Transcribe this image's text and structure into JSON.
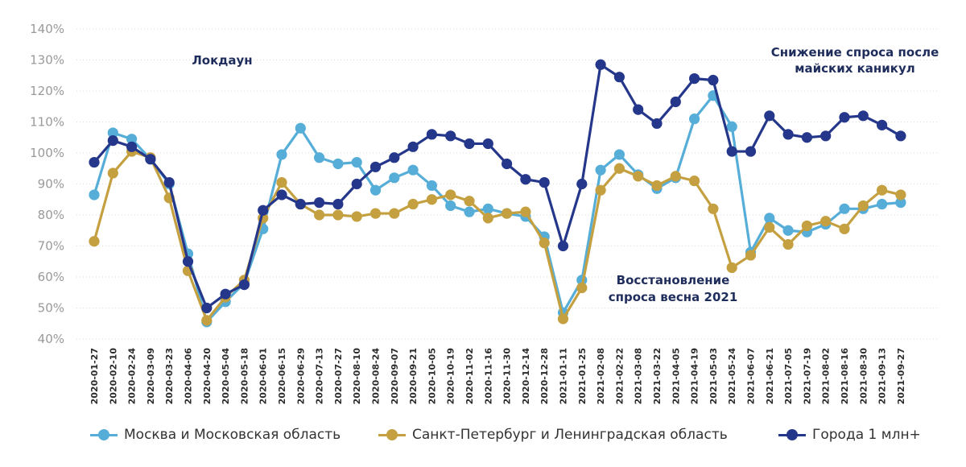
{
  "chart_data": {
    "type": "line",
    "title": "",
    "xlabel": "",
    "ylabel": "",
    "ylim": [
      40,
      140
    ],
    "y_ticks": [
      "40%",
      "50%",
      "60%",
      "70%",
      "80%",
      "90%",
      "100%",
      "110%",
      "120%",
      "130%",
      "140%"
    ],
    "grid": true,
    "legend_position": "bottom",
    "categories": [
      "2020-01-27",
      "2020-02-10",
      "2020-02-24",
      "2020-03-09",
      "2020-03-23",
      "2020-04-06",
      "2020-04-20",
      "2020-05-04",
      "2020-05-18",
      "2020-06-01",
      "2020-06-15",
      "2020-06-29",
      "2020-07-13",
      "2020-07-27",
      "2020-08-10",
      "2020-08-24",
      "2020-09-07",
      "2020-09-21",
      "2020-10-05",
      "2020-10-19",
      "2020-11-02",
      "2020-11-16",
      "2020-11-30",
      "2020-12-14",
      "2020-12-28",
      "2021-01-11",
      "2021-01-25",
      "2021-02-08",
      "2021-02-22",
      "2021-03-08",
      "2021-03-22",
      "2021-04-05",
      "2021-04-19",
      "2021-05-03",
      "2021-05-24",
      "2021-06-07",
      "2021-06-21",
      "2021-07-05",
      "2021-07-19",
      "2021-08-02",
      "2021-08-16",
      "2021-08-30",
      "2021-09-13",
      "2021-09-27"
    ],
    "series": [
      {
        "name": "Москва и Московская область",
        "color": "#56aed8",
        "values": [
          86.5,
          106.5,
          104.5,
          98,
          90,
          67.5,
          45.5,
          52,
          58,
          75.5,
          99.5,
          108,
          98.5,
          96.5,
          97,
          88,
          92,
          94.5,
          89.5,
          83,
          81,
          82,
          80.5,
          79.5,
          73,
          48.5,
          59,
          94.5,
          99.5,
          93,
          88.5,
          92,
          111,
          118.5,
          108.5,
          68,
          79,
          75,
          74.5,
          77,
          82,
          82,
          83.5,
          84
        ]
      },
      {
        "name": "Санкт-Петербург и Ленинградская область",
        "color": "#c4a041",
        "values": [
          71.5,
          93.5,
          100.5,
          98.5,
          85.5,
          62,
          46,
          53.5,
          59,
          79,
          90.5,
          83.5,
          80,
          80,
          79.5,
          80.5,
          80.5,
          83.5,
          85,
          86.5,
          84.5,
          79,
          80.5,
          81,
          71,
          46.5,
          56.5,
          88,
          95,
          92.5,
          89.5,
          92.5,
          91,
          82,
          63,
          67,
          76,
          70.5,
          76.5,
          78,
          75.5,
          83,
          88,
          86.5
        ]
      },
      {
        "name": "Города 1 млн+",
        "color": "#25378a",
        "values": [
          97,
          104,
          102,
          98,
          90.5,
          65,
          50,
          54.5,
          57.5,
          81.5,
          86.5,
          83.5,
          84,
          83.5,
          90,
          95.5,
          98.5,
          102,
          106,
          105.5,
          103,
          103,
          96.5,
          91.5,
          90.5,
          70,
          90,
          128.5,
          124.5,
          114,
          109.5,
          116.5,
          124,
          123.5,
          100.5,
          100.5,
          112,
          106,
          105,
          105.5,
          111.5,
          112,
          109,
          105.5
        ]
      }
    ],
    "annotations": [
      {
        "id": "lockdown",
        "lines": [
          "Локдаун"
        ]
      },
      {
        "id": "recovery",
        "lines": [
          "Восстановление",
          "спроса весна 2021"
        ]
      },
      {
        "id": "decline",
        "lines": [
          "Снижение спроса после",
          "майских каникул"
        ]
      }
    ]
  }
}
